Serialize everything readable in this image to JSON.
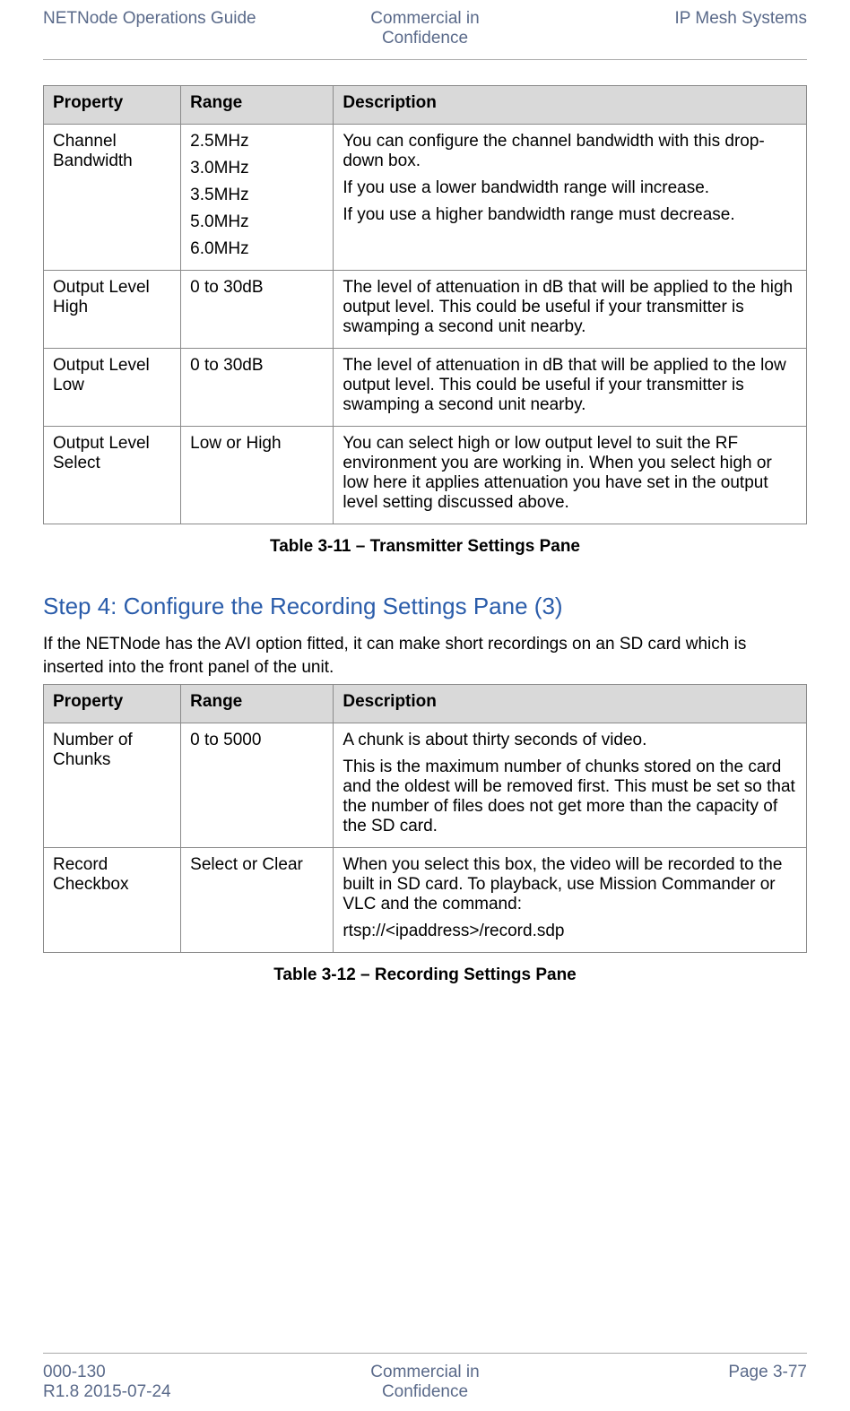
{
  "header": {
    "left": "NETNode Operations Guide",
    "center_line1": "Commercial in",
    "center_line2": "Confidence",
    "right": "IP Mesh Systems"
  },
  "table1": {
    "headers": {
      "c1": "Property",
      "c2": "Range",
      "c3": "Description"
    },
    "rows": [
      {
        "property": "Channel Bandwidth",
        "range_list": [
          "2.5MHz",
          "3.0MHz",
          "3.5MHz",
          "5.0MHz",
          "6.0MHz"
        ],
        "desc": [
          "You can configure the channel bandwidth with this drop-down box.",
          "If you use a lower bandwidth range will increase.",
          "If you use a higher bandwidth range must decrease."
        ]
      },
      {
        "property": "Output Level High",
        "range": "0 to 30dB",
        "desc": [
          "The level of attenuation in dB that will be applied to the high output level. This could be useful if your transmitter is swamping a second unit nearby."
        ]
      },
      {
        "property": "Output Level Low",
        "range": "0 to 30dB",
        "desc": [
          "The level of attenuation in dB that will be applied to the low output level. This could be useful if your transmitter is swamping a second unit nearby."
        ]
      },
      {
        "property": "Output Level Select",
        "range": "Low or High",
        "desc": [
          "You can select high or low output level to suit the RF environment you are working in. When you select high or low here it applies attenuation you have set in the output level setting discussed above."
        ]
      }
    ],
    "caption": "Table 3-11 – Transmitter Settings Pane"
  },
  "section": {
    "heading": "Step 4: Configure the Recording Settings Pane (3)",
    "intro": "If the NETNode has the AVI option fitted, it can make short recordings on an SD card which is inserted into the front panel of the unit."
  },
  "table2": {
    "headers": {
      "c1": "Property",
      "c2": "Range",
      "c3": "Description"
    },
    "rows": [
      {
        "property": "Number of Chunks",
        "range": "0 to 5000",
        "desc": [
          "A chunk is about thirty seconds of video.",
          "This is the maximum number of chunks stored on the card and the oldest will be removed first. This must be set so that the number of files does not get more than the capacity of the SD card."
        ]
      },
      {
        "property": "Record Checkbox",
        "range": "Select or Clear",
        "desc": [
          "When you select this box, the video will be recorded to the built in SD card. To playback, use Mission Commander or VLC and the command:",
          "rtsp://<ipaddress>/record.sdp"
        ]
      }
    ],
    "caption": "Table 3-12 – Recording Settings Pane"
  },
  "footer": {
    "left_line1": "000-130",
    "left_line2": "R1.8 2015-07-24",
    "center_line1": "Commercial in",
    "center_line2": "Confidence",
    "right": "Page 3-77"
  },
  "colors": {
    "header_text": "#5A6A8A",
    "heading_text": "#2A5CAA",
    "table_header_bg": "#d9d9d9",
    "border": "#8a8a8a"
  }
}
